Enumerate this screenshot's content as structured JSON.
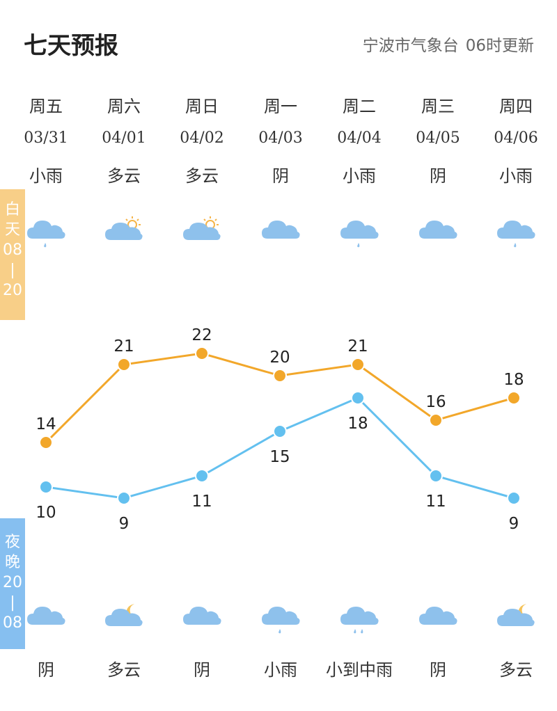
{
  "header": {
    "title": "七天预报",
    "source": "宁波市气象台",
    "update": "06时更新"
  },
  "side": {
    "day": [
      "白",
      "天",
      "08",
      "|",
      "20"
    ],
    "night": [
      "夜",
      "晚",
      "20",
      "|",
      "08"
    ]
  },
  "colors": {
    "day_line": "#f2a72a",
    "night_line": "#63c0ef",
    "day_band": "#f8cf88",
    "night_band": "#86bff0",
    "cloud": "#8ec1ec",
    "sun": "#f5b54a",
    "moon": "#f5c35a"
  },
  "days": [
    {
      "week": "周五",
      "date": "03/31",
      "day_weather": "小雨",
      "night_weather": "阴",
      "day_icon": "light-rain-icon",
      "night_icon": "cloud-icon"
    },
    {
      "week": "周六",
      "date": "04/01",
      "day_weather": "多云",
      "night_weather": "多云",
      "day_icon": "partly-cloudy-day-icon",
      "night_icon": "partly-cloudy-night-icon"
    },
    {
      "week": "周日",
      "date": "04/02",
      "day_weather": "多云",
      "night_weather": "阴",
      "day_icon": "partly-cloudy-day-icon",
      "night_icon": "cloud-icon"
    },
    {
      "week": "周一",
      "date": "04/03",
      "day_weather": "阴",
      "night_weather": "小雨",
      "day_icon": "cloud-icon",
      "night_icon": "light-rain-icon"
    },
    {
      "week": "周二",
      "date": "04/04",
      "day_weather": "小雨",
      "night_weather": "小到中雨",
      "day_icon": "light-rain-icon",
      "night_icon": "moderate-rain-icon"
    },
    {
      "week": "周三",
      "date": "04/05",
      "day_weather": "阴",
      "night_weather": "阴",
      "day_icon": "cloud-icon",
      "night_icon": "cloud-icon"
    },
    {
      "week": "周四",
      "date": "04/06",
      "day_weather": "小雨",
      "night_weather": "多云",
      "day_icon": "light-rain-icon",
      "night_icon": "partly-cloudy-night-icon"
    }
  ],
  "chart_data": {
    "type": "line",
    "categories": [
      "03/31",
      "04/01",
      "04/02",
      "04/03",
      "04/04",
      "04/05",
      "04/06"
    ],
    "series": [
      {
        "values": [
          14,
          21,
          22,
          20,
          21,
          16,
          18
        ],
        "color": "#f2a72a"
      },
      {
        "values": [
          10,
          9,
          11,
          15,
          18,
          11,
          9
        ],
        "color": "#63c0ef"
      }
    ]
  }
}
